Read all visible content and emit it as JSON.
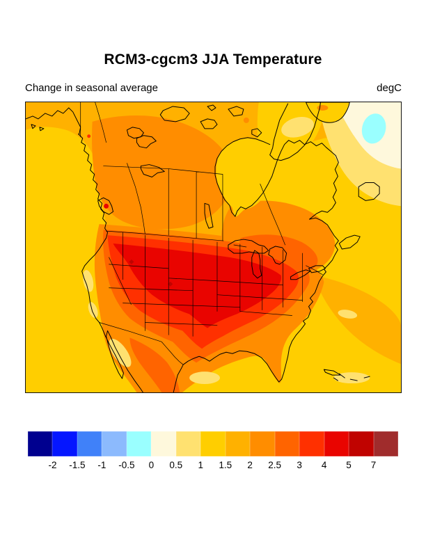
{
  "figure": {
    "title": "RCM3-cgcm3 JJA Temperature",
    "subtitle_left": "Change in seasonal average",
    "units_label": "degC"
  },
  "chart_data": {
    "type": "heatmap",
    "subtype": "filled_contour_map",
    "geographic_region": "North America",
    "title": "RCM3-cgcm3 JJA Temperature",
    "variable": "Change in seasonal average",
    "units": "degC",
    "legend_position": "bottom-horizontal",
    "grid": false,
    "contour_levels": [
      -2,
      -1.5,
      -1,
      -0.5,
      0,
      0.5,
      1,
      1.5,
      2,
      2.5,
      3,
      4,
      5,
      7
    ],
    "colorbar": {
      "orientation": "horizontal",
      "tick_labels": [
        "-2",
        "-1.5",
        "-1",
        "-0.5",
        "0",
        "0.5",
        "1",
        "1.5",
        "2",
        "2.5",
        "3",
        "4",
        "5",
        "7"
      ],
      "colors": [
        "#00008F",
        "#0516FF",
        "#4081F9",
        "#8CBAFD",
        "#9AFFFF",
        "#FEF8DC",
        "#FFE170",
        "#FFCE00",
        "#FFB100",
        "#FF8D00",
        "#FF6400",
        "#FF3000",
        "#E90400",
        "#C00300",
        "#A02C2C"
      ]
    },
    "value_summary": [
      {
        "region": "Pacific Ocean west of coast",
        "approx_change_degC": "1.5 to 2"
      },
      {
        "region": "Northern and western Canada",
        "approx_change_degC": "2 to 2.5"
      },
      {
        "region": "Central Canada and Quebec",
        "approx_change_degC": "2.5 to 3"
      },
      {
        "region": "Contiguous US interior",
        "approx_change_degC": "3 to 4"
      },
      {
        "region": "Rockies, Great Plains and Midwest core",
        "approx_change_degC": "4 to 5"
      },
      {
        "region": "Hudson Bay and Baffin region",
        "approx_change_degC": "1.5 to 2"
      },
      {
        "region": "Atlantic southeast of Greenland",
        "approx_change_degC": "-0.5 to 0.5"
      },
      {
        "region": "Gulf of Mexico and Caribbean",
        "approx_change_degC": "1 to 2"
      }
    ]
  }
}
